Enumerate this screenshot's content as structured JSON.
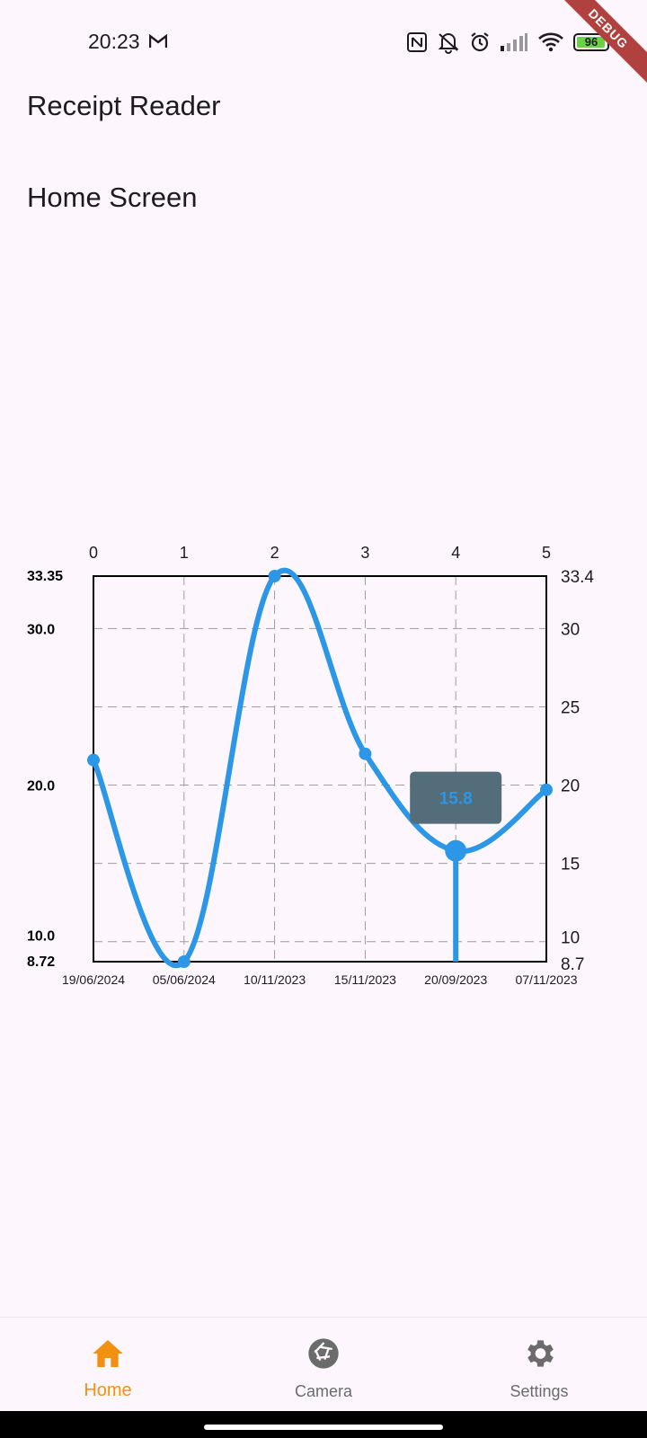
{
  "status_bar": {
    "time": "20:23",
    "battery_level": "96",
    "icons": [
      "gmail-icon",
      "nfc-icon",
      "bell-off-icon",
      "alarm-icon",
      "signal-icon",
      "wifi-icon",
      "battery-icon"
    ]
  },
  "debug_banner": "DEBUG",
  "app_bar": {
    "title": "Receipt Reader"
  },
  "main": {
    "heading": "Home Screen"
  },
  "chart_data": {
    "type": "line",
    "x": [
      0,
      1,
      2,
      3,
      4,
      5
    ],
    "dates": [
      "19/06/2024",
      "05/06/2024",
      "10/11/2023",
      "15/11/2023",
      "20/09/2023",
      "07/11/2023"
    ],
    "series": [
      {
        "values": [
          21.6,
          8.72,
          33.35,
          22.0,
          15.8,
          19.7
        ],
        "color": "#2b97e6"
      }
    ],
    "ylim": [
      8.72,
      33.35
    ],
    "left_tick_labels": [
      "33.35",
      "30.0",
      "20.0",
      "10.0",
      "8.72"
    ],
    "left_tick_values": [
      33.35,
      30,
      20,
      10,
      8.72
    ],
    "right_tick_labels": [
      "33.4",
      "30",
      "25",
      "20",
      "15",
      "10",
      "8.7"
    ],
    "right_tick_values": [
      33.35,
      30,
      25,
      20,
      15,
      10,
      8.72
    ],
    "grid_y": [
      10,
      15,
      20,
      25,
      30
    ],
    "grid": true,
    "tooltip": {
      "index": 4,
      "label": "15.8",
      "background": "#546d7a",
      "text_color": "#2b97e6"
    }
  },
  "bottom_nav": {
    "items": [
      {
        "label": "Home",
        "icon": "home-icon",
        "active": true
      },
      {
        "label": "Camera",
        "icon": "camera-aperture-icon",
        "active": false
      },
      {
        "label": "Settings",
        "icon": "gear-icon",
        "active": false
      }
    ],
    "active_color": "#f29111",
    "inactive_color": "#6b6b6b"
  }
}
